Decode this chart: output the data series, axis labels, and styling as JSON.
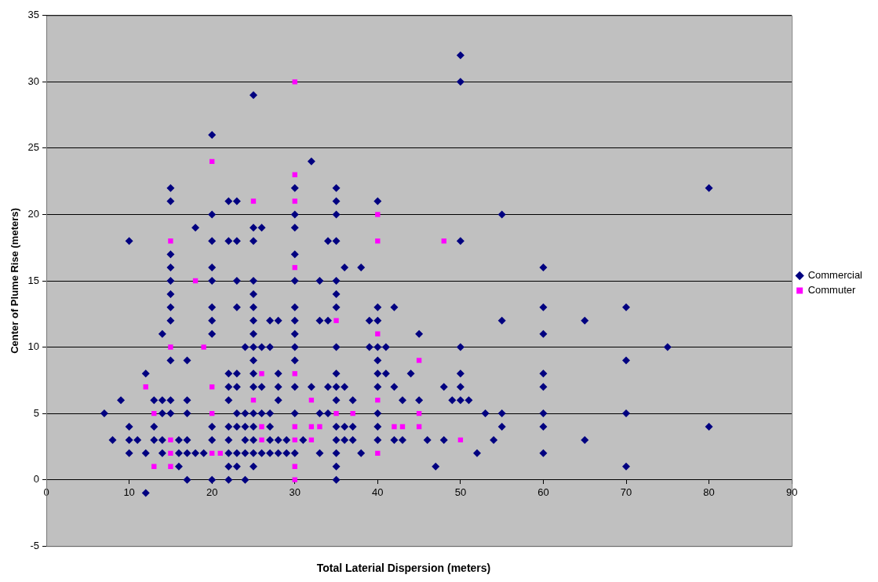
{
  "chart_data": {
    "type": "scatter",
    "xlabel": "Total Laterial Dispersion (meters)",
    "ylabel": "Center of Plume Rise (meters)",
    "xlim": [
      0,
      90
    ],
    "xticks": [
      0,
      10,
      20,
      30,
      40,
      50,
      60,
      70,
      80,
      90
    ],
    "ylim": [
      -5,
      35
    ],
    "yticks": [
      -5,
      0,
      5,
      10,
      15,
      20,
      25,
      30,
      35
    ],
    "grid": "y",
    "legend": "right",
    "series": [
      {
        "name": "Commercial",
        "color": "#000080",
        "marker": "diamond",
        "x": [
          7,
          8,
          9,
          10,
          10,
          10,
          10,
          11,
          12,
          12,
          12,
          13,
          13,
          13,
          14,
          14,
          14,
          14,
          14,
          15,
          15,
          15,
          15,
          15,
          15,
          15,
          15,
          15,
          15,
          15,
          16,
          16,
          16,
          17,
          17,
          17,
          17,
          17,
          17,
          18,
          18,
          19,
          20,
          20,
          20,
          20,
          20,
          20,
          20,
          20,
          20,
          20,
          20,
          22,
          22,
          22,
          22,
          22,
          22,
          22,
          22,
          22,
          22,
          23,
          23,
          23,
          23,
          23,
          23,
          23,
          23,
          23,
          23,
          24,
          24,
          24,
          24,
          24,
          24,
          25,
          25,
          25,
          25,
          25,
          25,
          25,
          25,
          25,
          25,
          25,
          25,
          25,
          25,
          25,
          25,
          25,
          26,
          26,
          26,
          26,
          26,
          27,
          27,
          27,
          27,
          27,
          27,
          28,
          28,
          28,
          28,
          28,
          28,
          29,
          29,
          30,
          30,
          30,
          30,
          30,
          30,
          30,
          30,
          30,
          30,
          30,
          30,
          30,
          31,
          32,
          32,
          33,
          33,
          33,
          33,
          34,
          34,
          34,
          34,
          35,
          35,
          35,
          35,
          35,
          35,
          35,
          35,
          35,
          35,
          35,
          35,
          35,
          35,
          35,
          35,
          36,
          36,
          36,
          36,
          37,
          37,
          37,
          38,
          38,
          39,
          39,
          40,
          40,
          40,
          40,
          40,
          40,
          40,
          40,
          40,
          40,
          41,
          41,
          42,
          42,
          42,
          43,
          43,
          44,
          45,
          45,
          46,
          47,
          48,
          48,
          49,
          50,
          50,
          50,
          50,
          50,
          50,
          50,
          51,
          52,
          53,
          54,
          55,
          55,
          55,
          55,
          60,
          60,
          60,
          60,
          60,
          60,
          60,
          60,
          65,
          65,
          70,
          70,
          70,
          70,
          75,
          80,
          80
        ],
        "values": [
          5,
          3,
          6,
          18,
          4,
          3,
          2,
          3,
          8,
          2,
          -1,
          6,
          4,
          3,
          11,
          6,
          5,
          3,
          2,
          22,
          21,
          17,
          16,
          15,
          14,
          13,
          12,
          9,
          6,
          5,
          3,
          2,
          1,
          9,
          6,
          5,
          3,
          2,
          0,
          19,
          2,
          2,
          26,
          20,
          18,
          16,
          15,
          13,
          12,
          11,
          4,
          3,
          0,
          21,
          18,
          8,
          7,
          6,
          4,
          3,
          2,
          1,
          0,
          21,
          18,
          15,
          13,
          8,
          7,
          5,
          4,
          2,
          1,
          10,
          5,
          4,
          3,
          2,
          0,
          29,
          19,
          18,
          15,
          14,
          13,
          12,
          11,
          10,
          9,
          8,
          7,
          5,
          4,
          3,
          2,
          1,
          19,
          10,
          7,
          5,
          2,
          12,
          10,
          5,
          4,
          3,
          2,
          12,
          8,
          7,
          6,
          3,
          2,
          3,
          2,
          22,
          20,
          19,
          17,
          15,
          13,
          12,
          11,
          10,
          9,
          7,
          5,
          2,
          3,
          24,
          7,
          15,
          12,
          5,
          2,
          18,
          12,
          7,
          5,
          22,
          21,
          20,
          18,
          15,
          14,
          13,
          10,
          8,
          7,
          6,
          4,
          3,
          2,
          1,
          0,
          16,
          7,
          4,
          3,
          6,
          4,
          3,
          16,
          2,
          12,
          10,
          21,
          13,
          12,
          10,
          9,
          8,
          7,
          5,
          4,
          3,
          10,
          8,
          13,
          7,
          3,
          6,
          3,
          8,
          11,
          6,
          3,
          1,
          7,
          3,
          6,
          32,
          30,
          18,
          10,
          8,
          7,
          6,
          6,
          2,
          5,
          3,
          20,
          12,
          5,
          4,
          16,
          13,
          11,
          8,
          7,
          5,
          4,
          2,
          12,
          3,
          13,
          9,
          5,
          1,
          10,
          22,
          4
        ]
      },
      {
        "name": "Commuter",
        "color": "#ff00ff",
        "marker": "square",
        "x": [
          12,
          13,
          13,
          15,
          15,
          15,
          15,
          15,
          18,
          19,
          20,
          20,
          20,
          20,
          21,
          25,
          25,
          26,
          26,
          26,
          30,
          30,
          30,
          30,
          30,
          30,
          30,
          30,
          30,
          32,
          32,
          32,
          33,
          35,
          35,
          37,
          40,
          40,
          40,
          40,
          40,
          42,
          43,
          45,
          45,
          45,
          48,
          50
        ],
        "values": [
          7,
          5,
          1,
          18,
          10,
          3,
          2,
          1,
          15,
          10,
          24,
          7,
          5,
          2,
          2,
          21,
          6,
          8,
          4,
          3,
          30,
          23,
          21,
          16,
          8,
          4,
          3,
          1,
          0,
          6,
          4,
          3,
          4,
          12,
          5,
          5,
          20,
          18,
          11,
          6,
          2,
          4,
          4,
          9,
          5,
          4,
          18,
          3
        ]
      }
    ]
  }
}
